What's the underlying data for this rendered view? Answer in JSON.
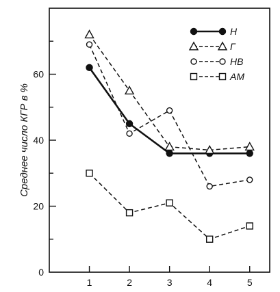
{
  "chart_data": {
    "type": "line",
    "ylabel": "Среднее число КГР в %",
    "x": [
      1,
      2,
      3,
      4,
      5
    ],
    "x_ticks": [
      "1",
      "2",
      "3",
      "4",
      "5"
    ],
    "y_ticks": [
      "0",
      "20",
      "40",
      "60"
    ],
    "xlim": [
      0,
      5.5
    ],
    "ylim": [
      0,
      80
    ],
    "grid": false,
    "legend_position": "top-right",
    "series": [
      {
        "name": "Н",
        "values": [
          62,
          45,
          36,
          36,
          36
        ],
        "line": "solid",
        "marker": "filled-circle",
        "color": "#111111"
      },
      {
        "name": "Г",
        "values": [
          72,
          55,
          38,
          37,
          38
        ],
        "line": "dashed",
        "marker": "triangle",
        "color": "#111111"
      },
      {
        "name": "НВ",
        "values": [
          69,
          42,
          49,
          26,
          28
        ],
        "line": "dashed",
        "marker": "open-circle",
        "color": "#111111"
      },
      {
        "name": "АМ",
        "values": [
          30,
          18,
          21,
          10,
          14
        ],
        "line": "dashed",
        "marker": "open-square",
        "color": "#111111"
      }
    ]
  }
}
